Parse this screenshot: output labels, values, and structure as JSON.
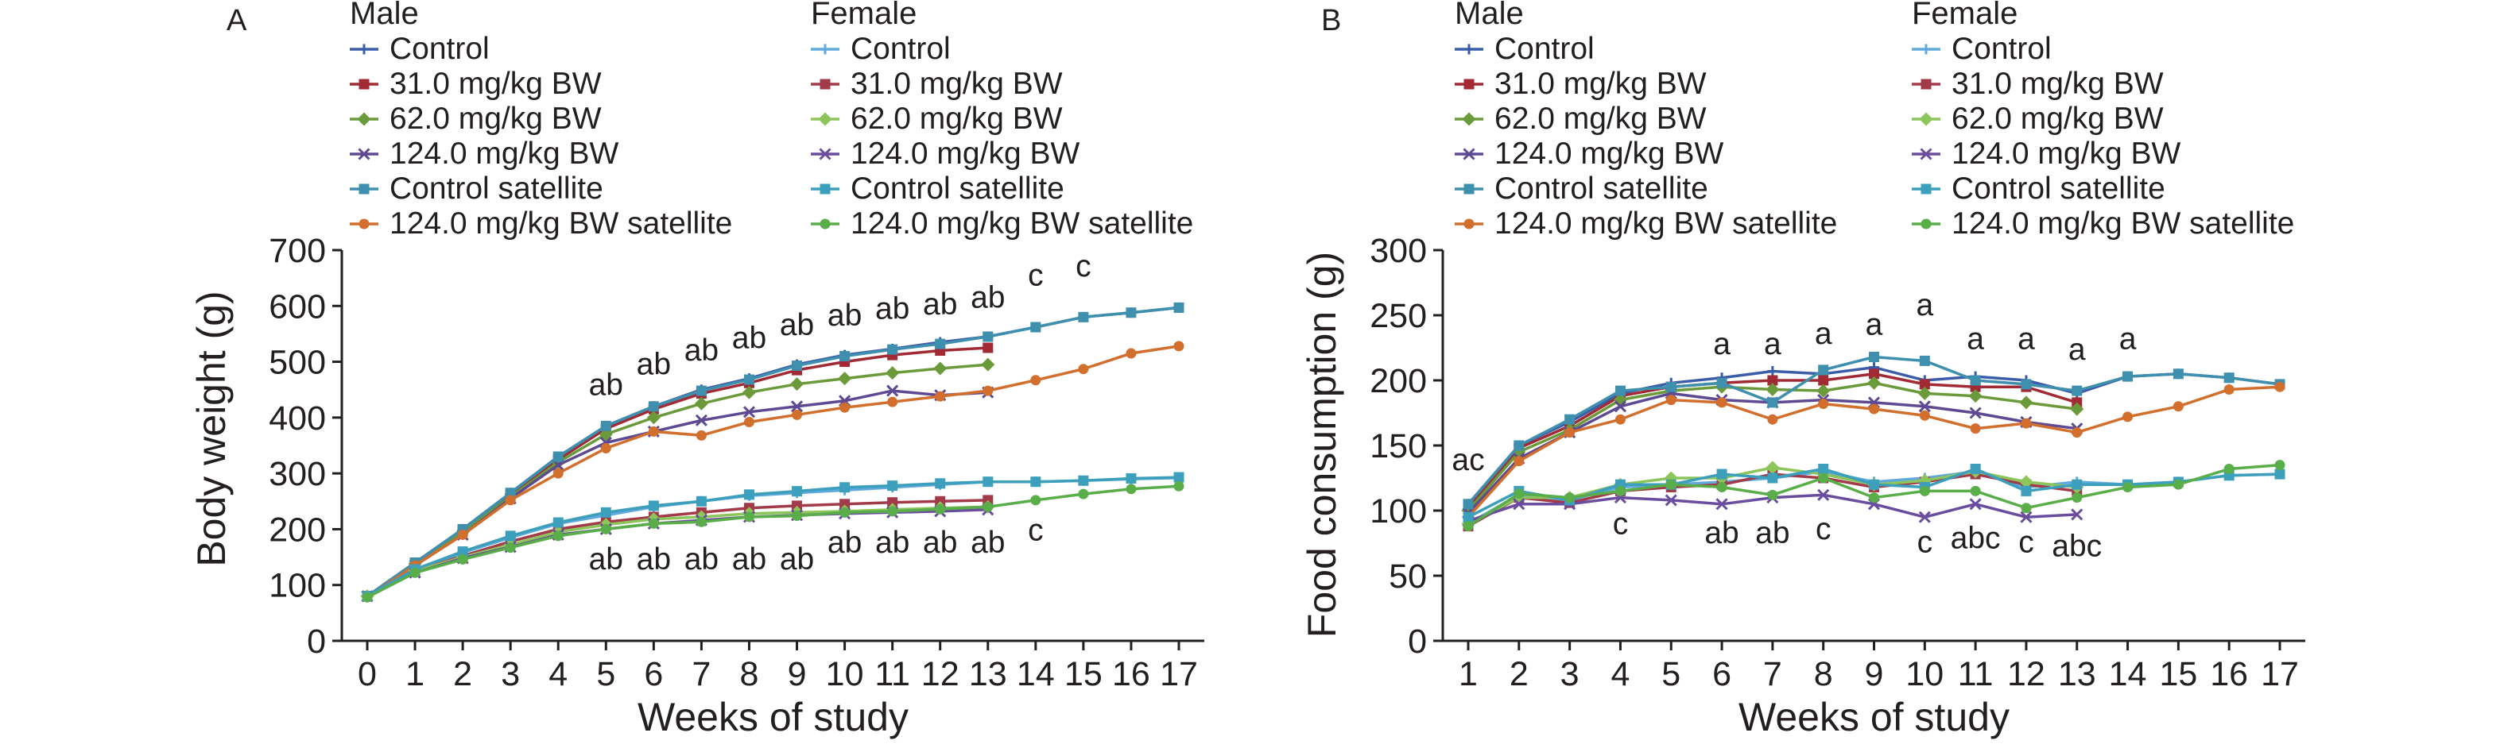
{
  "figure": {
    "legend_groups": [
      "Male",
      "Female"
    ],
    "legend_entries": [
      "Control",
      "31.0 mg/kg BW",
      "62.0 mg/kg BW",
      "124.0 mg/kg BW",
      "Control satellite",
      "124.0 mg/kg BW satellite"
    ],
    "colors": {
      "male": [
        "#3b5ca8",
        "#a22a35",
        "#6a9a3a",
        "#5e4a93",
        "#3f8fae",
        "#d26f2d"
      ],
      "female": [
        "#5fa9dc",
        "#a33a4a",
        "#8cc55a",
        "#6a4d9e",
        "#3c9fbc",
        "#5aae4a"
      ]
    }
  },
  "chart_data": [
    {
      "panel": "A",
      "type": "line",
      "ylabel": "Body weight (g)",
      "xlabel": "Weeks of study",
      "ylim": [
        0,
        700
      ],
      "yticks": [
        0,
        100,
        200,
        300,
        400,
        500,
        600,
        700
      ],
      "x": [
        0,
        1,
        2,
        3,
        4,
        5,
        6,
        7,
        8,
        9,
        10,
        11,
        12,
        13,
        14,
        15,
        16,
        17
      ],
      "series": [
        {
          "name": "Control",
          "group": "Male",
          "values": [
            80,
            140,
            200,
            265,
            330,
            385,
            420,
            450,
            470,
            495,
            512,
            523,
            535,
            545,
            562,
            580,
            588,
            597
          ]
        },
        {
          "name": "31.0 mg/kg BW",
          "group": "Male",
          "values": [
            80,
            140,
            198,
            262,
            325,
            380,
            415,
            443,
            462,
            485,
            500,
            512,
            520,
            525,
            null,
            null,
            null,
            null
          ]
        },
        {
          "name": "62.0 mg/kg BW",
          "group": "Male",
          "values": [
            80,
            138,
            195,
            258,
            320,
            370,
            400,
            425,
            445,
            460,
            470,
            480,
            488,
            495,
            null,
            null,
            null,
            null
          ]
        },
        {
          "name": "124.0 mg/kg BW",
          "group": "Male",
          "values": [
            80,
            135,
            190,
            255,
            315,
            355,
            375,
            395,
            410,
            420,
            430,
            448,
            440,
            445,
            null,
            null,
            null,
            null
          ]
        },
        {
          "name": "Control satellite",
          "group": "Male",
          "values": [
            80,
            140,
            200,
            265,
            330,
            385,
            420,
            448,
            468,
            493,
            510,
            522,
            532,
            545,
            562,
            580,
            588,
            597
          ]
        },
        {
          "name": "124.0 mg/kg BW satellite",
          "group": "Male",
          "values": [
            78,
            135,
            190,
            252,
            300,
            345,
            375,
            368,
            392,
            405,
            418,
            428,
            438,
            448,
            467,
            487,
            515,
            528
          ]
        },
        {
          "name": "Control",
          "group": "Female",
          "values": [
            80,
            125,
            158,
            185,
            210,
            225,
            240,
            250,
            260,
            265,
            270,
            275,
            280,
            285,
            285,
            287,
            290,
            292
          ]
        },
        {
          "name": "31.0 mg/kg BW",
          "group": "Female",
          "values": [
            80,
            125,
            152,
            178,
            200,
            213,
            222,
            230,
            238,
            242,
            245,
            248,
            250,
            252,
            null,
            null,
            null,
            null
          ]
        },
        {
          "name": "62.0 mg/kg BW",
          "group": "Female",
          "values": [
            80,
            125,
            150,
            172,
            195,
            208,
            218,
            222,
            228,
            230,
            232,
            235,
            238,
            240,
            null,
            null,
            null,
            null
          ]
        },
        {
          "name": "124.0 mg/kg BW",
          "group": "Female",
          "values": [
            80,
            122,
            148,
            168,
            190,
            200,
            210,
            216,
            222,
            225,
            228,
            230,
            232,
            235,
            null,
            null,
            null,
            null
          ]
        },
        {
          "name": "Control satellite",
          "group": "Female",
          "values": [
            80,
            128,
            160,
            188,
            212,
            230,
            242,
            250,
            262,
            268,
            275,
            278,
            282,
            285,
            285,
            287,
            291,
            293
          ]
        },
        {
          "name": "124.0 mg/kg BW satellite",
          "group": "Female",
          "values": [
            78,
            122,
            146,
            167,
            188,
            200,
            210,
            213,
            222,
            224,
            230,
            232,
            236,
            240,
            252,
            263,
            272,
            277
          ]
        }
      ],
      "annotations": [
        {
          "text": "ab",
          "x": 5,
          "y": 440
        },
        {
          "text": "ab",
          "x": 6,
          "y": 477
        },
        {
          "text": "ab",
          "x": 7,
          "y": 502
        },
        {
          "text": "ab",
          "x": 8,
          "y": 524
        },
        {
          "text": "ab",
          "x": 9,
          "y": 548
        },
        {
          "text": "ab",
          "x": 10,
          "y": 565
        },
        {
          "text": "ab",
          "x": 11,
          "y": 577
        },
        {
          "text": "ab",
          "x": 12,
          "y": 585
        },
        {
          "text": "ab",
          "x": 13,
          "y": 597
        },
        {
          "text": "c",
          "x": 14,
          "y": 637
        },
        {
          "text": "c",
          "x": 15,
          "y": 653
        },
        {
          "text": "ab",
          "x": 5,
          "y": 128
        },
        {
          "text": "ab",
          "x": 6,
          "y": 128
        },
        {
          "text": "ab",
          "x": 7,
          "y": 128
        },
        {
          "text": "ab",
          "x": 8,
          "y": 128
        },
        {
          "text": "ab",
          "x": 9,
          "y": 128
        },
        {
          "text": "ab",
          "x": 10,
          "y": 158
        },
        {
          "text": "ab",
          "x": 11,
          "y": 158
        },
        {
          "text": "ab",
          "x": 12,
          "y": 158
        },
        {
          "text": "ab",
          "x": 13,
          "y": 158
        },
        {
          "text": "c",
          "x": 14,
          "y": 180
        }
      ]
    },
    {
      "panel": "B",
      "type": "line",
      "ylabel": "Food consumption (g)",
      "xlabel": "Weeks of study",
      "ylim": [
        0,
        300
      ],
      "yticks": [
        0,
        50,
        100,
        150,
        200,
        250,
        300
      ],
      "x": [
        1,
        2,
        3,
        4,
        5,
        6,
        7,
        8,
        9,
        10,
        11,
        12,
        13,
        14,
        15,
        16,
        17
      ],
      "series": [
        {
          "name": "Control",
          "group": "Male",
          "values": [
            105,
            150,
            168,
            190,
            198,
            202,
            207,
            205,
            210,
            200,
            203,
            200,
            190,
            203,
            205,
            202,
            197
          ]
        },
        {
          "name": "31.0 mg/kg BW",
          "group": "Male",
          "values": [
            102,
            148,
            165,
            188,
            195,
            198,
            200,
            200,
            205,
            197,
            195,
            195,
            183,
            null,
            null,
            null,
            null
          ]
        },
        {
          "name": "62.0 mg/kg BW",
          "group": "Male",
          "values": [
            100,
            145,
            162,
            185,
            192,
            195,
            193,
            192,
            198,
            190,
            188,
            183,
            178,
            null,
            null,
            null,
            null
          ]
        },
        {
          "name": "124.0 mg/kg BW",
          "group": "Male",
          "values": [
            98,
            140,
            160,
            180,
            190,
            185,
            183,
            185,
            183,
            180,
            175,
            168,
            163,
            null,
            null,
            null,
            null
          ]
        },
        {
          "name": "Control satellite",
          "group": "Male",
          "values": [
            105,
            150,
            170,
            192,
            195,
            198,
            183,
            208,
            218,
            215,
            200,
            197,
            192,
            203,
            205,
            202,
            197
          ]
        },
        {
          "name": "124.0 mg/kg BW satellite",
          "group": "Male",
          "values": [
            95,
            138,
            160,
            170,
            185,
            183,
            170,
            182,
            178,
            173,
            163,
            167,
            160,
            172,
            180,
            193,
            195
          ]
        },
        {
          "name": "Control",
          "group": "Female",
          "values": [
            90,
            112,
            108,
            118,
            120,
            122,
            125,
            130,
            122,
            125,
            130,
            118,
            122,
            120,
            122,
            127,
            128
          ]
        },
        {
          "name": "31.0 mg/kg BW",
          "group": "Female",
          "values": [
            88,
            110,
            106,
            115,
            118,
            120,
            128,
            125,
            118,
            122,
            128,
            120,
            115,
            null,
            null,
            null,
            null
          ]
        },
        {
          "name": "62.0 mg/kg BW",
          "group": "Female",
          "values": [
            90,
            110,
            110,
            120,
            125,
            125,
            133,
            128,
            120,
            123,
            130,
            122,
            118,
            null,
            null,
            null,
            null
          ]
        },
        {
          "name": "124.0 mg/kg BW",
          "group": "Female",
          "values": [
            92,
            105,
            105,
            110,
            108,
            105,
            110,
            112,
            105,
            95,
            105,
            95,
            97,
            null,
            null,
            null,
            null
          ]
        },
        {
          "name": "Control satellite",
          "group": "Female",
          "values": [
            95,
            115,
            108,
            120,
            120,
            128,
            125,
            132,
            120,
            118,
            132,
            115,
            120,
            120,
            122,
            127,
            128
          ]
        },
        {
          "name": "124.0 mg/kg BW satellite",
          "group": "Female",
          "values": [
            88,
            113,
            110,
            115,
            120,
            118,
            112,
            125,
            110,
            115,
            115,
            102,
            110,
            118,
            120,
            132,
            135
          ]
        }
      ],
      "annotations": [
        {
          "text": "ac",
          "x": 1,
          "y": 131
        },
        {
          "text": "a",
          "x": 6,
          "y": 220
        },
        {
          "text": "a",
          "x": 7,
          "y": 220
        },
        {
          "text": "a",
          "x": 8,
          "y": 228
        },
        {
          "text": "a",
          "x": 9,
          "y": 235
        },
        {
          "text": "a",
          "x": 10,
          "y": 250
        },
        {
          "text": "a",
          "x": 11,
          "y": 224
        },
        {
          "text": "a",
          "x": 12,
          "y": 224
        },
        {
          "text": "a",
          "x": 13,
          "y": 216
        },
        {
          "text": "a",
          "x": 14,
          "y": 224
        },
        {
          "text": "c",
          "x": 4,
          "y": 82
        },
        {
          "text": "ab",
          "x": 6,
          "y": 75
        },
        {
          "text": "ab",
          "x": 7,
          "y": 75
        },
        {
          "text": "c",
          "x": 8,
          "y": 78
        },
        {
          "text": "c",
          "x": 10,
          "y": 68
        },
        {
          "text": "abc",
          "x": 11,
          "y": 71
        },
        {
          "text": "c",
          "x": 12,
          "y": 68
        },
        {
          "text": "abc",
          "x": 13,
          "y": 65
        }
      ]
    }
  ]
}
